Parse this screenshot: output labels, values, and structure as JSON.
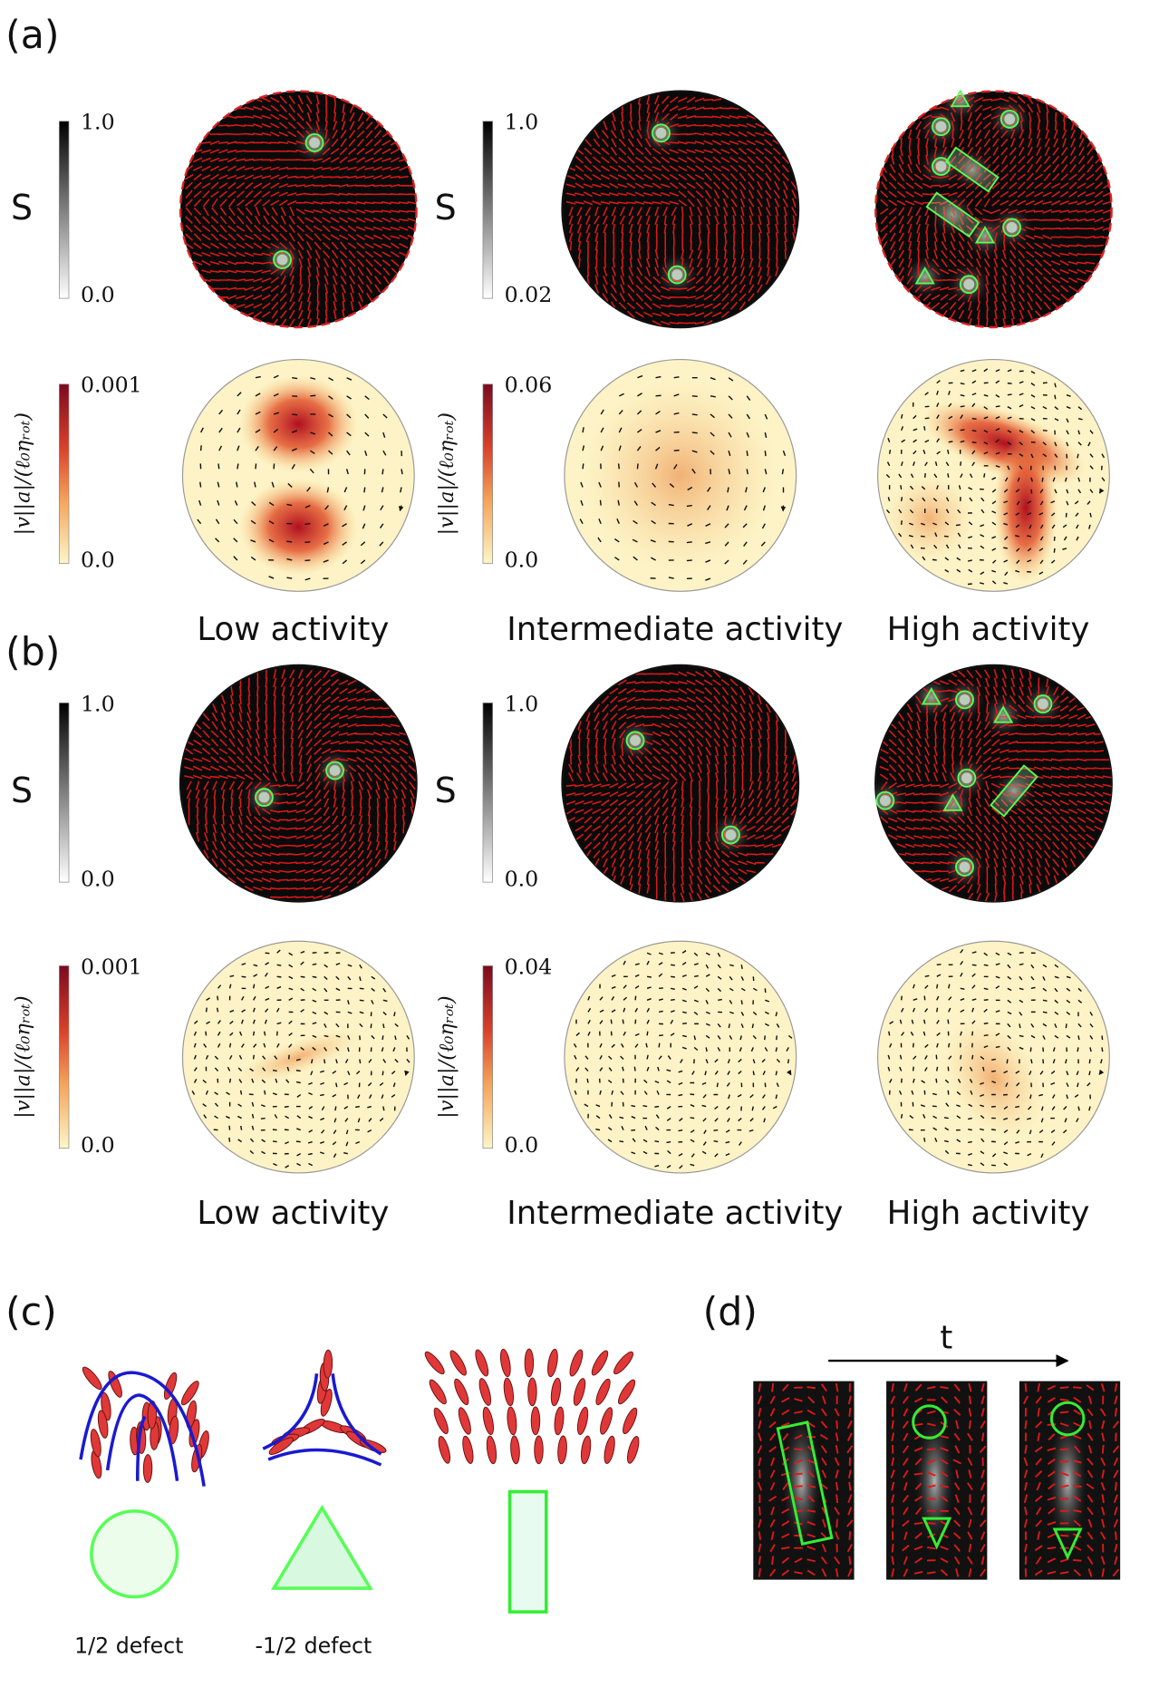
{
  "panels": [
    {
      "label": "(a)",
      "rows": [
        {
          "colorbars": [
            {
              "title": "S",
              "max": "1.0",
              "min": "0.0"
            },
            {
              "title": "S",
              "max": "1.0",
              "min": "0.02"
            }
          ]
        },
        {
          "colorbars": [
            {
              "title": "|v||a|/(ℓ₀ηᵣₒₜ)",
              "max": "0.001",
              "min": "0.0"
            },
            {
              "title": "|v||a|/(ℓ₀ηᵣₒₜ)",
              "max": "0.06",
              "min": "0.0"
            }
          ]
        }
      ],
      "captions": [
        "Low activity",
        "Intermediate activity",
        "High activity"
      ]
    },
    {
      "label": "(b)",
      "rows": [
        {
          "colorbars": [
            {
              "title": "S",
              "max": "1.0",
              "min": "0.0"
            },
            {
              "title": "S",
              "max": "1.0",
              "min": "0.0"
            }
          ]
        },
        {
          "colorbars": [
            {
              "title": "|v||a|/(ℓ₀ηᵣₒₜ)",
              "max": "0.001",
              "min": "0.0"
            },
            {
              "title": "|v||a|/(ℓ₀ηᵣₒₜ)",
              "max": "0.04",
              "min": "0.0"
            }
          ]
        }
      ],
      "captions": [
        "Low activity",
        "Intermediate activity",
        "High activity"
      ]
    }
  ],
  "panel_c": {
    "label": "(c)",
    "legend": [
      "1/2 defect",
      "-1/2 defect"
    ]
  },
  "panel_d": {
    "label": "(d)",
    "axis": "t"
  }
}
